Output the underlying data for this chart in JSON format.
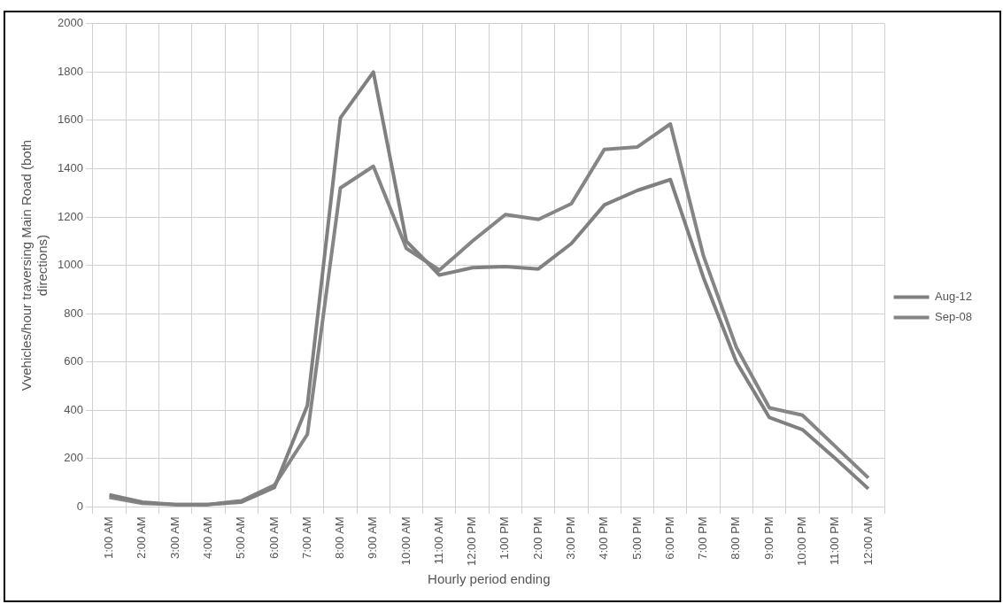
{
  "chart_data": {
    "type": "line",
    "xlabel": "Hourly period ending",
    "ylabel": "Vvehicles/hour traversing Main Road (both directions)",
    "categories": [
      "1:00 AM",
      "2:00 AM",
      "3:00 AM",
      "4:00 AM",
      "5:00 AM",
      "6:00 AM",
      "7:00 AM",
      "8:00 AM",
      "9:00 AM",
      "10:00 AM",
      "11:00 AM",
      "12:00 PM",
      "1:00 PM",
      "2:00 PM",
      "3:00 PM",
      "4:00 PM",
      "5:00 PM",
      "6:00 PM",
      "7:00 PM",
      "8:00 PM",
      "9:00 PM",
      "10:00 PM",
      "11:00 PM",
      "12:00 AM"
    ],
    "series": [
      {
        "name": "Aug-12",
        "color": "#808080",
        "values": [
          50,
          20,
          10,
          10,
          20,
          80,
          420,
          1610,
          1800,
          1100,
          960,
          990,
          995,
          985,
          1090,
          1250,
          1310,
          1355,
          950,
          600,
          370,
          320,
          200,
          75
        ]
      },
      {
        "name": "Sep-08",
        "color": "#858585",
        "values": [
          40,
          15,
          10,
          10,
          25,
          90,
          300,
          1320,
          1410,
          1070,
          980,
          1100,
          1210,
          1190,
          1255,
          1480,
          1490,
          1585,
          1040,
          660,
          410,
          380,
          250,
          120
        ]
      }
    ],
    "ylim": [
      0,
      2000
    ],
    "yticks": [
      0,
      200,
      400,
      600,
      800,
      1000,
      1200,
      1400,
      1600,
      1800,
      2000
    ],
    "grid": true,
    "legend": "right",
    "marker": "none",
    "line_style": "solid"
  }
}
